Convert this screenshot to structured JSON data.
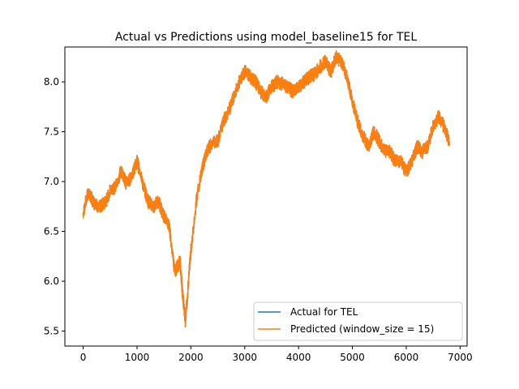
{
  "chart_data": {
    "type": "line",
    "title": "Actual vs Predictions using model_baseline15 for TEL",
    "xlabel": "",
    "ylabel": "",
    "xlim": [
      -340,
      7130
    ],
    "ylim": [
      5.35,
      8.35
    ],
    "x_ticks": [
      0,
      1000,
      2000,
      3000,
      4000,
      5000,
      6000,
      7000
    ],
    "x_tick_labels": [
      "0",
      "1000",
      "2000",
      "3000",
      "4000",
      "5000",
      "6000",
      "7000"
    ],
    "y_ticks": [
      5.5,
      6.0,
      6.5,
      7.0,
      7.5,
      8.0
    ],
    "y_tick_labels": [
      "5.5",
      "6.0",
      "6.5",
      "7.0",
      "7.5",
      "8.0"
    ],
    "grid": false,
    "legend_position": "lower-right",
    "x": [
      0,
      100,
      200,
      300,
      400,
      500,
      600,
      700,
      800,
      900,
      1000,
      1100,
      1200,
      1300,
      1400,
      1500,
      1600,
      1700,
      1800,
      1850,
      1900,
      2000,
      2100,
      2200,
      2300,
      2400,
      2500,
      2600,
      2700,
      2800,
      2900,
      3000,
      3100,
      3200,
      3300,
      3400,
      3500,
      3600,
      3700,
      3800,
      3900,
      4000,
      4100,
      4200,
      4300,
      4400,
      4500,
      4600,
      4700,
      4800,
      4900,
      5000,
      5100,
      5200,
      5300,
      5400,
      5500,
      5600,
      5700,
      5800,
      5900,
      6000,
      6100,
      6200,
      6300,
      6400,
      6500,
      6600,
      6700,
      6800
    ],
    "series": [
      {
        "name": "Actual for TEL",
        "color": "#1f77b4",
        "values": [
          6.7,
          6.9,
          6.78,
          6.75,
          6.78,
          6.9,
          6.95,
          7.1,
          6.98,
          7.05,
          7.2,
          7.0,
          6.8,
          6.75,
          6.8,
          6.65,
          6.55,
          6.1,
          6.2,
          5.85,
          5.6,
          6.3,
          6.8,
          7.1,
          7.3,
          7.4,
          7.4,
          7.6,
          7.7,
          7.85,
          8.0,
          8.1,
          8.05,
          8.0,
          7.9,
          7.85,
          7.95,
          8.0,
          7.98,
          7.95,
          7.9,
          7.95,
          8.0,
          8.05,
          8.08,
          8.15,
          8.2,
          8.1,
          8.25,
          8.2,
          8.05,
          7.8,
          7.6,
          7.45,
          7.35,
          7.5,
          7.4,
          7.3,
          7.3,
          7.2,
          7.2,
          7.1,
          7.2,
          7.35,
          7.3,
          7.35,
          7.55,
          7.65,
          7.55,
          7.4
        ]
      },
      {
        "name": "Predicted (window_size = 15)",
        "color": "#ff7f0e",
        "values": [
          6.7,
          6.9,
          6.78,
          6.75,
          6.78,
          6.9,
          6.95,
          7.1,
          6.98,
          7.05,
          7.2,
          7.0,
          6.8,
          6.75,
          6.8,
          6.65,
          6.55,
          6.1,
          6.2,
          5.85,
          5.6,
          6.3,
          6.8,
          7.1,
          7.3,
          7.4,
          7.4,
          7.6,
          7.7,
          7.85,
          8.0,
          8.1,
          8.05,
          8.0,
          7.9,
          7.85,
          7.95,
          8.0,
          7.98,
          7.95,
          7.9,
          7.95,
          8.0,
          8.05,
          8.08,
          8.15,
          8.2,
          8.1,
          8.25,
          8.2,
          8.05,
          7.8,
          7.6,
          7.45,
          7.35,
          7.5,
          7.4,
          7.3,
          7.3,
          7.2,
          7.2,
          7.1,
          7.2,
          7.35,
          7.3,
          7.35,
          7.55,
          7.65,
          7.55,
          7.4
        ]
      }
    ]
  }
}
